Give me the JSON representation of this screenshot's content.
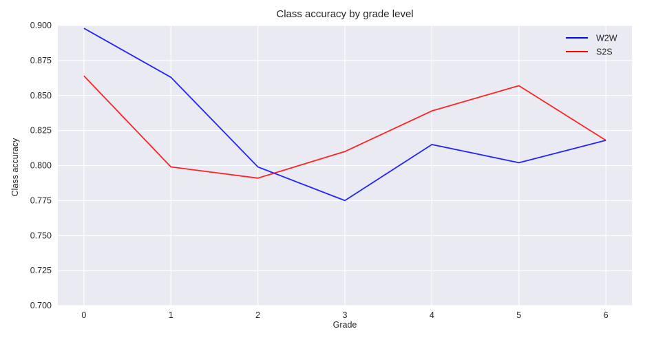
{
  "chart_data": {
    "type": "line",
    "title": "Class accuracy by grade level",
    "xlabel": "Grade",
    "ylabel": "Class accuracy",
    "x": [
      0,
      1,
      2,
      3,
      4,
      5,
      6
    ],
    "xticks": [
      "0",
      "1",
      "2",
      "3",
      "4",
      "5",
      "6"
    ],
    "yticks": [
      "0.700",
      "0.725",
      "0.750",
      "0.775",
      "0.800",
      "0.825",
      "0.850",
      "0.875",
      "0.900"
    ],
    "ylim": [
      0.7,
      0.9
    ],
    "xlim": [
      -0.3,
      6.3
    ],
    "grid": true,
    "background": "#EAEAF2",
    "legend_position": "top-right",
    "series": [
      {
        "name": "W2W",
        "color": "#0000FF",
        "values": [
          0.898,
          0.863,
          0.799,
          0.775,
          0.815,
          0.802,
          0.818
        ]
      },
      {
        "name": "S2S",
        "color": "#FF0000",
        "values": [
          0.864,
          0.799,
          0.791,
          0.81,
          0.839,
          0.857,
          0.818
        ]
      }
    ]
  }
}
